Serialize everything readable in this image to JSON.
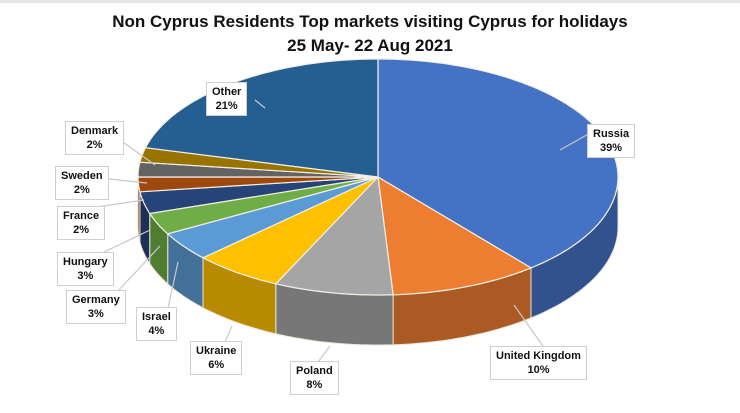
{
  "chart_data": {
    "type": "pie",
    "title": "Non Cyprus Residents Top markets visiting Cyprus for holidays",
    "subtitle": "25 May- 22 Aug 2021",
    "style": "3d-exploded-free pie, clockwise from 12 o'clock",
    "categories": [
      "Russia",
      "United Kingdom",
      "Poland",
      "Ukraine",
      "Israel",
      "Germany",
      "Hungary",
      "France",
      "Sweden",
      "Denmark",
      "Other"
    ],
    "values": [
      39,
      10,
      8,
      6,
      4,
      3,
      3,
      2,
      2,
      2,
      21
    ],
    "labels": [
      "39%",
      "10%",
      "8%",
      "6%",
      "4%",
      "3%",
      "3%",
      "2%",
      "2%",
      "2%",
      "21%"
    ],
    "colors": [
      "#4472C4",
      "#ED7D31",
      "#A5A5A5",
      "#FFC000",
      "#5B9BD5",
      "#70AD47",
      "#264478",
      "#9E480E",
      "#636363",
      "#997300",
      "#255E91"
    ],
    "legend": "none (data callout labels)"
  },
  "labels": {
    "russia": {
      "name": "Russia",
      "pct": "39%"
    },
    "uk": {
      "name": "United Kingdom",
      "pct": "10%"
    },
    "poland": {
      "name": "Poland",
      "pct": "8%"
    },
    "ukraine": {
      "name": "Ukraine",
      "pct": "6%"
    },
    "israel": {
      "name": "Israel",
      "pct": "4%"
    },
    "germany": {
      "name": "Germany",
      "pct": "3%"
    },
    "hungary": {
      "name": "Hungary",
      "pct": "3%"
    },
    "france": {
      "name": "France",
      "pct": "2%"
    },
    "sweden": {
      "name": "Sweden",
      "pct": "2%"
    },
    "denmark": {
      "name": "Denmark",
      "pct": "2%"
    },
    "other": {
      "name": "Other",
      "pct": "21%"
    }
  }
}
